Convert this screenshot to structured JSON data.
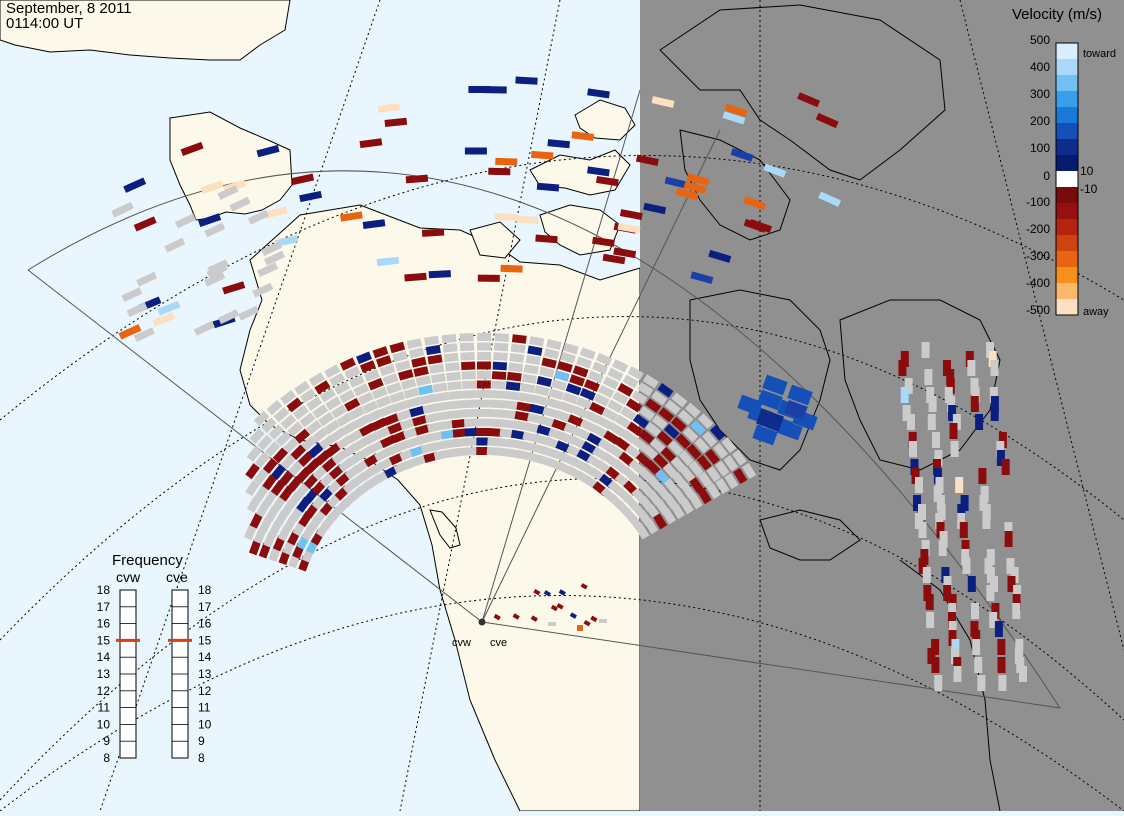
{
  "header": {
    "date": "September, 8 2011",
    "time": "0114:00 UT"
  },
  "colorbar": {
    "title": "Velocity (m/s)",
    "tick_labels": [
      "500",
      "400",
      "300",
      "200",
      "100",
      "10",
      "0",
      "-10",
      "-100",
      "-200",
      "-300",
      "-400",
      "-500"
    ],
    "toward_label": "toward",
    "away_label": "away",
    "colors": [
      "#d8eefc",
      "#a9d8f8",
      "#70c0f2",
      "#38a0ea",
      "#1a78d8",
      "#1450b8",
      "#0d2c8c",
      "#061a6e",
      "#ffffff",
      "#7a0b0b",
      "#961010",
      "#b42410",
      "#cd4410",
      "#e86410",
      "#f5901c",
      "#fbb86a",
      "#fde0c2"
    ]
  },
  "frequency": {
    "title": "Frequency",
    "cvw_label": "cvw",
    "cve_label": "cve",
    "ticks": [
      "18",
      "17",
      "16",
      "15",
      "14",
      "13",
      "12",
      "11",
      "10",
      "9",
      "8"
    ],
    "cvw_value": 15,
    "cve_value": 15
  },
  "radars": {
    "cvw_label": "cvw",
    "cve_label": "cve"
  },
  "colors": {
    "ocean": "#eaf6fd",
    "land": "#fcf9ea",
    "night": "#909090",
    "ground_scatter": "#cbcbcb",
    "low_negative": "#8b0c0c",
    "low_positive": "#0b1f80",
    "frequency_marker": "#d84010"
  }
}
